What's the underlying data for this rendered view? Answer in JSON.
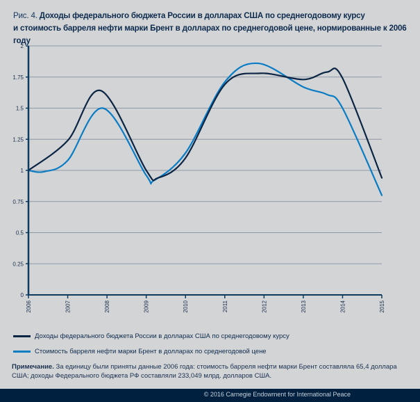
{
  "title": {
    "prefix": "Рис. 4.",
    "line1": "Доходы федерального бюджета России в долларах США по среднегодовому курсу",
    "line2": "и стоимость барреля нефти марки Брент в долларах по среднегодовой цене, нормированные к 2006 году"
  },
  "colors": {
    "background": "#d3d4d6",
    "gridline": "#8e9aa6",
    "axis": "#0d3a5f",
    "series_budget": "#0b2545",
    "series_brent": "#0a7cc4",
    "footer": "#00203f"
  },
  "chart_data": {
    "type": "line",
    "title": "Доходы федерального бюджета России в долларах США по среднегодовому курсу и стоимость барреля нефти марки Брент в долларах по среднегодовой цене, нормированные к 2006 году",
    "xlabel": "",
    "ylabel": "",
    "x": [
      "2006",
      "2007",
      "2008",
      "2009",
      "2010",
      "2011",
      "2012",
      "2013",
      "2014",
      "2015"
    ],
    "x_numeric": [
      2006,
      2007,
      2008,
      2009,
      2010,
      2011,
      2012,
      2013,
      2014,
      2015
    ],
    "xlim": [
      2006,
      2015
    ],
    "ylim": [
      0,
      2
    ],
    "yticks": [
      0,
      0.25,
      0.5,
      0.75,
      1,
      1.25,
      1.5,
      1.75,
      2
    ],
    "ytick_labels": [
      "0",
      "0.25",
      "0.5",
      "0.75",
      "1",
      "1.25",
      "1.5",
      "1.75",
      "2"
    ],
    "grid": true,
    "smooth": true,
    "legend_position": "bottom",
    "series": [
      {
        "name": "Доходы федерального бюджета России в долларах США по среднегодовому курсу",
        "color": "#0b2545",
        "points": [
          [
            2006,
            1.0
          ],
          [
            2007,
            1.24
          ],
          [
            2007.85,
            1.64
          ],
          [
            2009,
            1.0
          ],
          [
            2009.3,
            0.94
          ],
          [
            2010,
            1.1
          ],
          [
            2011,
            1.69
          ],
          [
            2011.9,
            1.78
          ],
          [
            2013,
            1.73
          ],
          [
            2013.6,
            1.79
          ],
          [
            2014,
            1.74
          ],
          [
            2015,
            0.94
          ]
        ]
      },
      {
        "name": "Стоимость барреля нефти марки Брент в долларах по среднегодовой цене",
        "color": "#0a7cc4",
        "points": [
          [
            2006,
            1.0
          ],
          [
            2006.4,
            0.99
          ],
          [
            2007,
            1.08
          ],
          [
            2007.9,
            1.5
          ],
          [
            2009,
            0.96
          ],
          [
            2009.2,
            0.92
          ],
          [
            2010,
            1.14
          ],
          [
            2011,
            1.71
          ],
          [
            2011.85,
            1.86
          ],
          [
            2013,
            1.67
          ],
          [
            2013.6,
            1.61
          ],
          [
            2014,
            1.5
          ],
          [
            2015,
            0.8
          ]
        ]
      }
    ]
  },
  "legend": [
    {
      "label": "Доходы федерального бюджета России в долларах США по среднегодовому курсу",
      "color": "#0b2545"
    },
    {
      "label": "Стоимость барреля нефти марки Брент в долларах по среднегодовой цене",
      "color": "#0a7cc4"
    }
  ],
  "note": {
    "label": "Примечание.",
    "text": "За единицу были приняты данные 2006 года: стоимость барреля нефти марки Брент составляла 65,4 доллара США; доходы Федерального бюджета РФ составляли 233,049 млрд. долларов США."
  },
  "footer": {
    "copyright": "© 2016 Carnegie Endowment for International Peace"
  }
}
